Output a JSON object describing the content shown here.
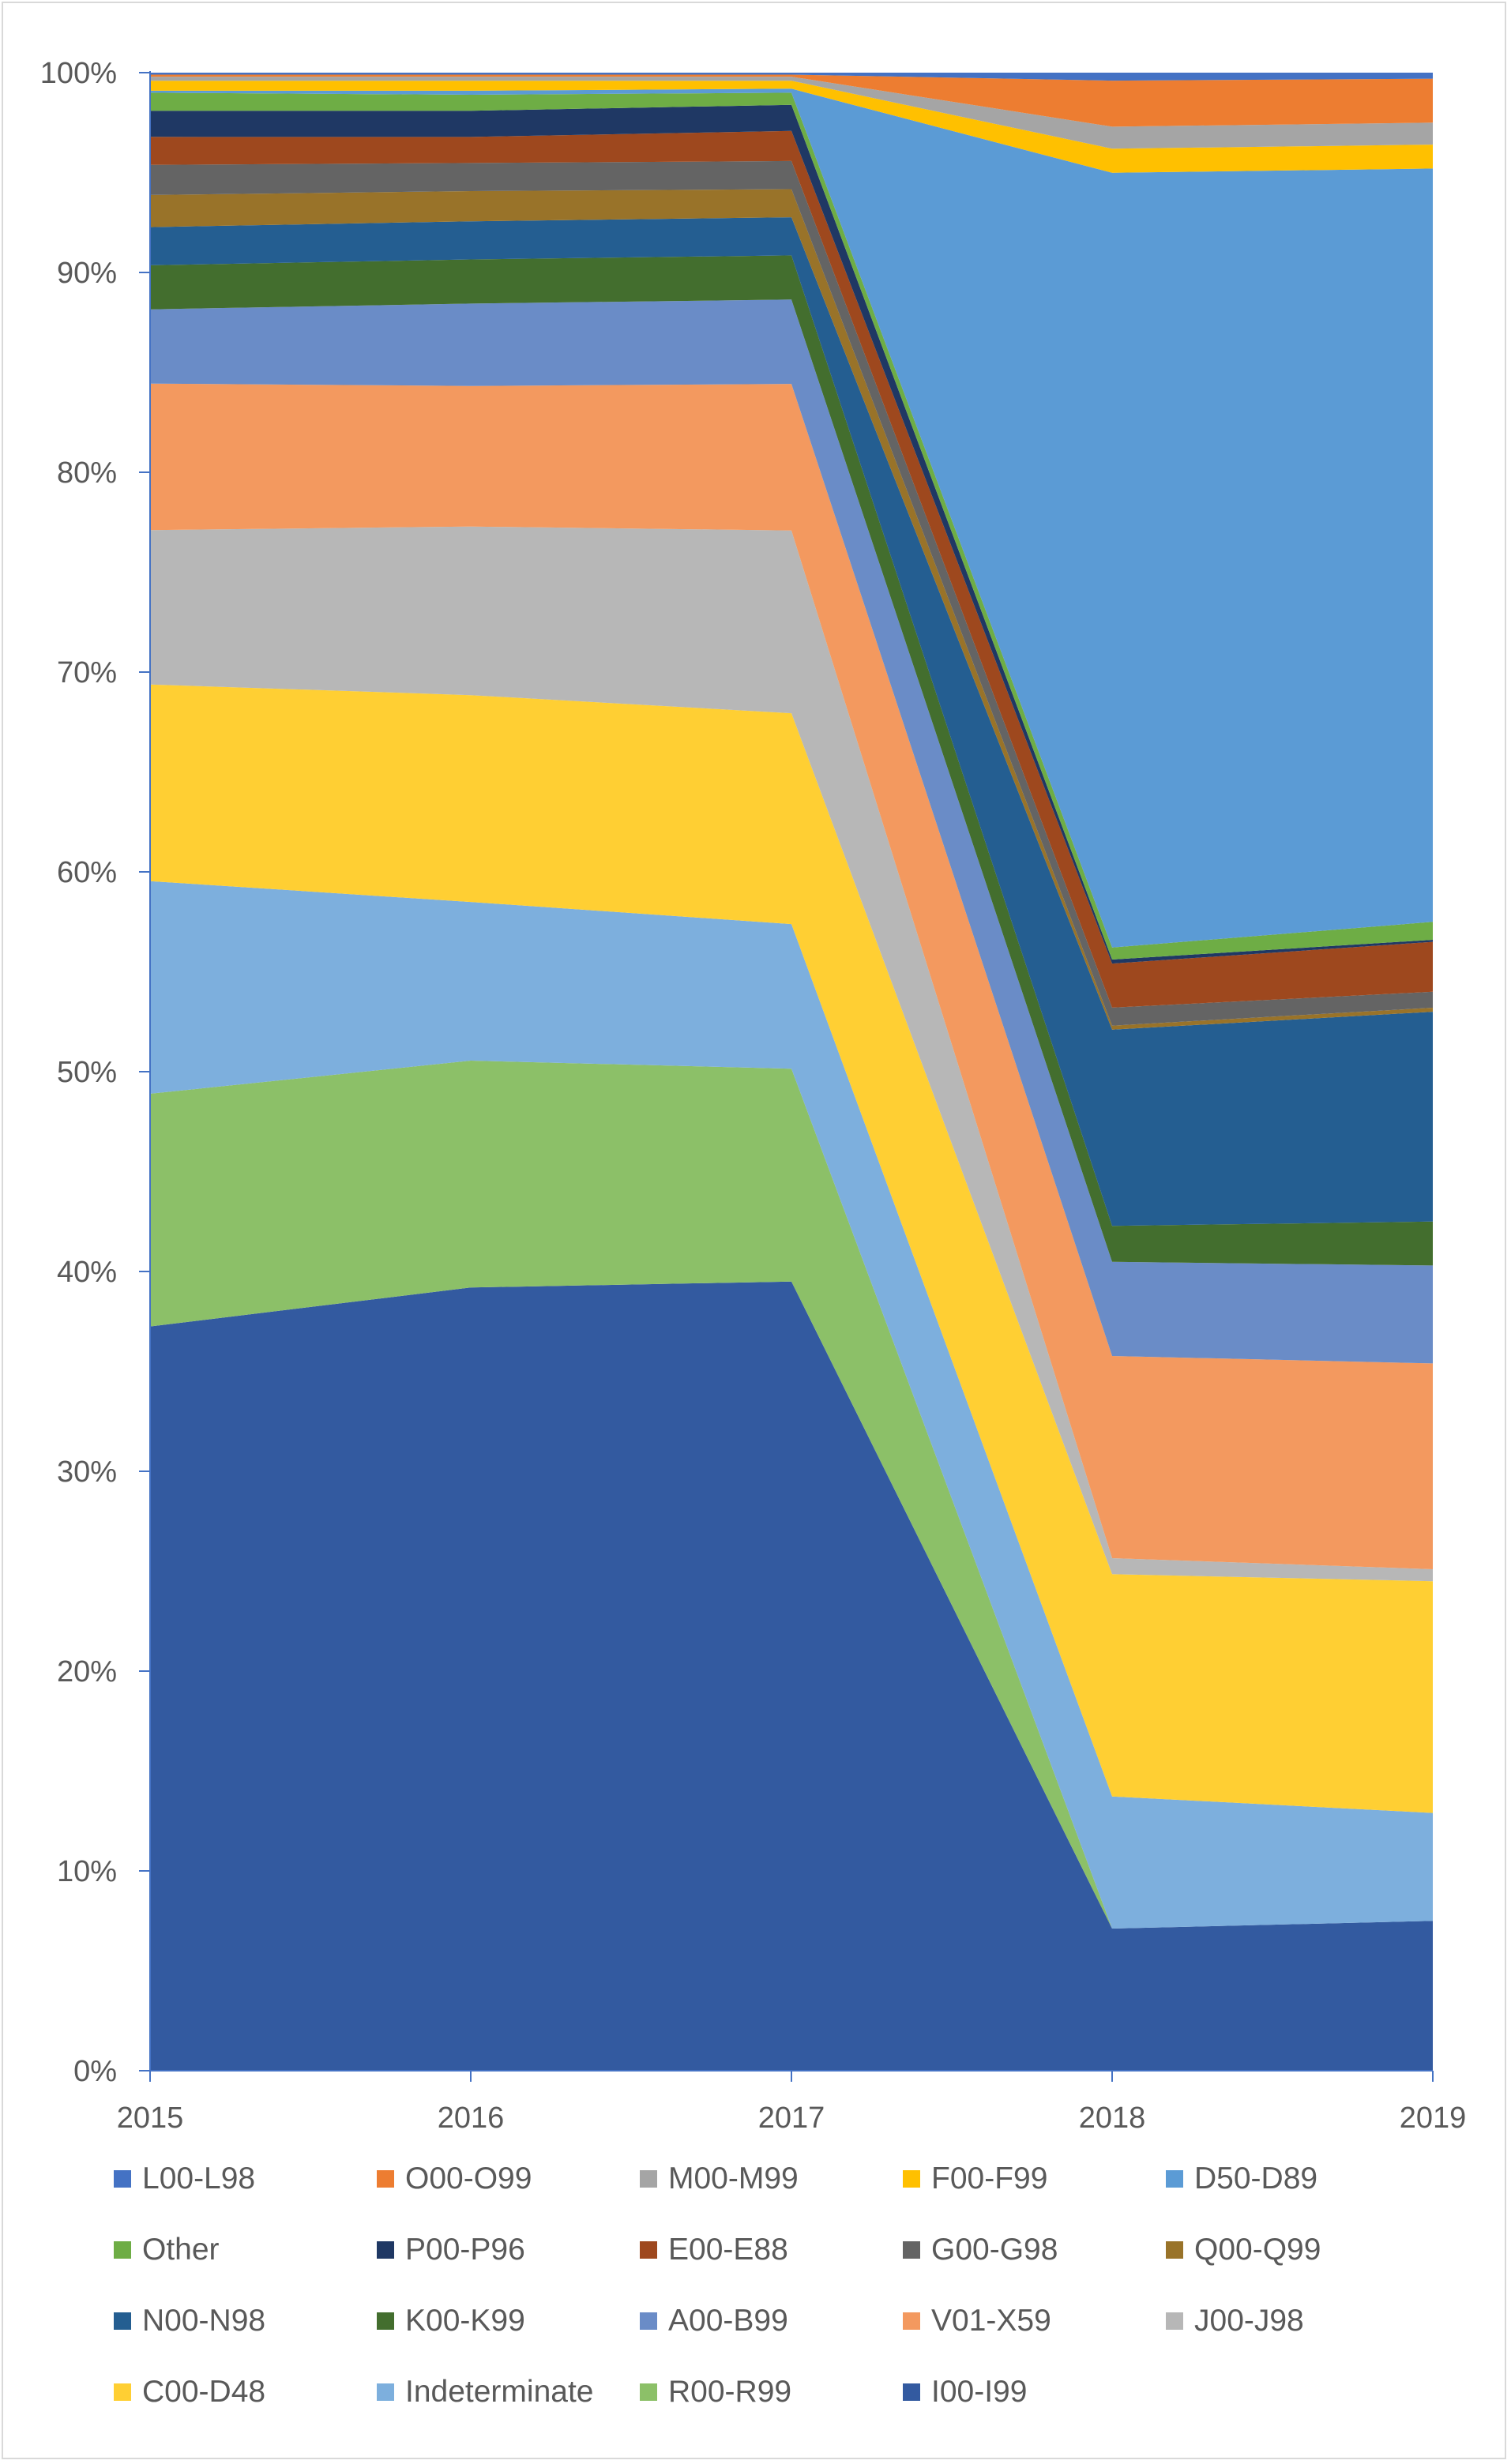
{
  "chart_data": {
    "type": "area",
    "stacked": true,
    "percent": true,
    "x": [
      "2015",
      "2016",
      "2017",
      "2018",
      "2019"
    ],
    "ylim": [
      0,
      100
    ],
    "y_ticks": [
      "0%",
      "10%",
      "20%",
      "30%",
      "40%",
      "50%",
      "60%",
      "70%",
      "80%",
      "90%",
      "100%"
    ],
    "grid": false,
    "legend_position": "bottom",
    "series": [
      {
        "name": "I00-I99",
        "color": "#335AA0",
        "values": [
          37.1,
          39.0,
          39.3,
          7.1,
          7.5
        ]
      },
      {
        "name": "R00-R99",
        "color": "#8CC068",
        "values": [
          11.6,
          11.3,
          10.6,
          0.0,
          0.0
        ]
      },
      {
        "name": "Indeterminate",
        "color": "#7DAFDD",
        "values": [
          10.6,
          7.9,
          7.2,
          6.6,
          5.4
        ]
      },
      {
        "name": "C00-D48",
        "color": "#FFCF33",
        "values": [
          9.8,
          10.3,
          10.5,
          11.1,
          11.6
        ]
      },
      {
        "name": "J00-J98",
        "color": "#B7B7B7",
        "values": [
          7.7,
          8.4,
          9.1,
          0.8,
          0.6
        ]
      },
      {
        "name": "V01-X59",
        "color": "#F3995F",
        "values": [
          7.3,
          7.0,
          7.3,
          10.1,
          10.3
        ]
      },
      {
        "name": "A00-B99",
        "color": "#6A8CC7",
        "values": [
          3.7,
          4.1,
          4.2,
          4.7,
          4.9
        ]
      },
      {
        "name": "K00-K99",
        "color": "#436E2E",
        "values": [
          2.2,
          2.2,
          2.2,
          1.8,
          2.2
        ]
      },
      {
        "name": "N00-N98",
        "color": "#245E91",
        "values": [
          1.9,
          1.9,
          1.9,
          9.8,
          10.5
        ]
      },
      {
        "name": "Q00-Q99",
        "color": "#997329",
        "values": [
          1.6,
          1.5,
          1.4,
          0.2,
          0.2
        ]
      },
      {
        "name": "G00-G98",
        "color": "#646464",
        "values": [
          1.5,
          1.4,
          1.4,
          0.9,
          0.8
        ]
      },
      {
        "name": "E00-E88",
        "color": "#9E481E",
        "values": [
          1.4,
          1.3,
          1.5,
          2.2,
          2.5
        ]
      },
      {
        "name": "P00-P96",
        "color": "#1F3864",
        "values": [
          1.3,
          1.3,
          1.3,
          0.2,
          0.1
        ]
      },
      {
        "name": "Other",
        "color": "#6EAD45",
        "values": [
          0.9,
          0.8,
          0.6,
          0.6,
          0.9
        ]
      },
      {
        "name": "D50-D89",
        "color": "#5B9BD5",
        "values": [
          0.1,
          0.2,
          0.2,
          38.7,
          37.7
        ]
      },
      {
        "name": "F00-F99",
        "color": "#FFC000",
        "values": [
          0.5,
          0.5,
          0.4,
          1.2,
          1.2
        ]
      },
      {
        "name": "M00-M99",
        "color": "#A5A5A5",
        "values": [
          0.2,
          0.2,
          0.2,
          1.1,
          1.1
        ]
      },
      {
        "name": "O00-O99",
        "color": "#ED7D31",
        "values": [
          0.1,
          0.1,
          0.1,
          2.3,
          2.2
        ]
      },
      {
        "name": "L00-L98",
        "color": "#4472C4",
        "values": [
          0.1,
          0.1,
          0.1,
          0.4,
          0.3
        ]
      }
    ],
    "legend_order": [
      "L00-L98",
      "O00-O99",
      "M00-M99",
      "F00-F99",
      "D50-D89",
      "Other",
      "P00-P96",
      "E00-E88",
      "G00-G98",
      "Q00-Q99",
      "N00-N98",
      "K00-K99",
      "A00-B99",
      "V01-X59",
      "J00-J98",
      "C00-D48",
      "Indeterminate",
      "R00-R99",
      "I00-I99"
    ]
  }
}
